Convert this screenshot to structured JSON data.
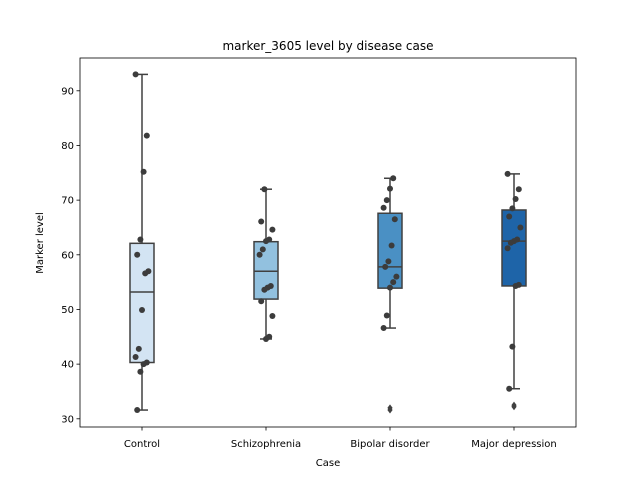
{
  "chart_data": {
    "type": "box",
    "title": "marker_3605 level by disease case",
    "xlabel": "Case",
    "ylabel": "Marker level",
    "ylim": [
      28.5,
      96.0
    ],
    "yticks": [
      30,
      40,
      50,
      60,
      70,
      80,
      90
    ],
    "categories": [
      "Control",
      "Schizophrenia",
      "Bipolar disorder",
      "Major depression"
    ],
    "colors": [
      "#d3e4f3",
      "#92c1df",
      "#4a90c4",
      "#1e64a8"
    ],
    "edge_color": "#404040",
    "point_color": "#3c3c3c",
    "grid": false,
    "legend": null,
    "boxes": [
      {
        "category": "Control",
        "whislo": 31.6,
        "q1": 40.3,
        "median": 53.2,
        "q3": 62.1,
        "whishi": 93.0,
        "fliers": [],
        "points": [
          93.0,
          81.8,
          75.2,
          62.8,
          60.0,
          57.0,
          56.6,
          49.9,
          42.8,
          41.3,
          40.3,
          40.0,
          38.6,
          31.6
        ]
      },
      {
        "category": "Schizophrenia",
        "whislo": 44.6,
        "q1": 51.9,
        "median": 57.0,
        "q3": 62.4,
        "whishi": 72.0,
        "fliers": [],
        "points": [
          72.0,
          66.1,
          64.6,
          62.8,
          62.5,
          61.0,
          60.0,
          54.3,
          54.0,
          53.6,
          51.5,
          48.8,
          45.0,
          44.6
        ]
      },
      {
        "category": "Bipolar disorder",
        "whislo": 46.6,
        "q1": 53.9,
        "median": 57.8,
        "q3": 67.6,
        "whishi": 74.0,
        "fliers": [
          31.6,
          32.0
        ],
        "points": [
          74.0,
          72.1,
          70.0,
          68.6,
          66.5,
          61.7,
          58.8,
          57.8,
          56.0,
          55.0,
          54.0,
          48.9,
          46.6
        ]
      },
      {
        "category": "Major depression",
        "whislo": 35.5,
        "q1": 54.3,
        "median": 62.5,
        "q3": 68.2,
        "whishi": 74.8,
        "fliers": [
          32.2,
          32.5
        ],
        "points": [
          74.8,
          72.0,
          70.2,
          68.5,
          67.0,
          65.0,
          62.8,
          62.5,
          62.2,
          61.2,
          54.5,
          54.3,
          43.2,
          35.5
        ]
      }
    ]
  }
}
